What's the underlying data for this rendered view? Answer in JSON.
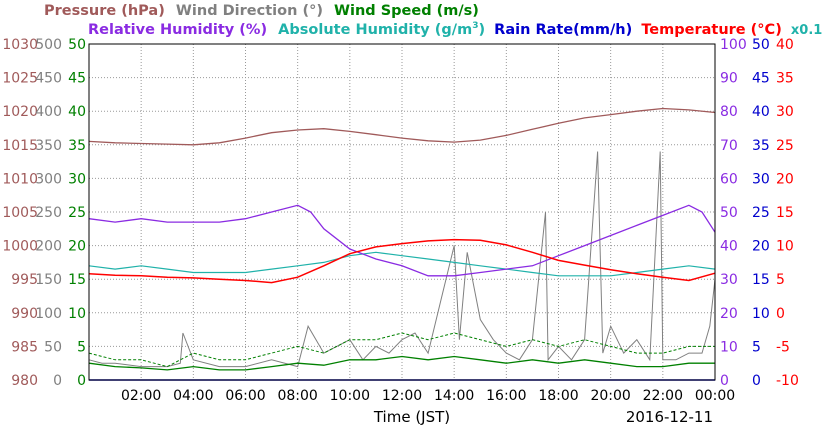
{
  "legend": {
    "pressure": "Pressure (hPa)",
    "wind_direction": "Wind Direction (°)",
    "wind_speed": "Wind Speed (m/s)",
    "relative_humidity": "Relative Humidity (%)",
    "absolute_humidity": "Absolute Humidity (g/m",
    "absolute_humidity_sup": "3",
    "absolute_humidity_close": ")",
    "rain_rate": "Rain Rate(mm/h)",
    "temperature": "Temperature (°C)",
    "scale_note": "x0.1"
  },
  "xlabel": "Time (JST)",
  "date": "2016-12-11",
  "colors": {
    "pressure": "#a05a5a",
    "wind_direction": "#808080",
    "wind_speed": "#008000",
    "relative_humidity": "#8a2be2",
    "absolute_humidity": "#20b2aa",
    "rain_rate": "#0000cd",
    "temperature": "#ff0000"
  },
  "chart_data": {
    "type": "line",
    "x_range_hours": [
      0,
      24
    ],
    "x_ticks": [
      "02:00",
      "04:00",
      "06:00",
      "08:00",
      "10:00",
      "12:00",
      "14:00",
      "16:00",
      "18:00",
      "20:00",
      "22:00",
      "00:00"
    ],
    "axes": {
      "pressure": [
        "980",
        "985",
        "990",
        "995",
        "1000",
        "1005",
        "1010",
        "1015",
        "1020",
        "1025",
        "1030"
      ],
      "wind_direction": [
        "0",
        "50",
        "100",
        "150",
        "200",
        "250",
        "300",
        "350",
        "400",
        "450",
        "500"
      ],
      "wind_speed": [
        "0",
        "5",
        "10",
        "15",
        "20",
        "25",
        "30",
        "35",
        "40",
        "45",
        "50"
      ],
      "relative_humidity": [
        "0",
        "10",
        "20",
        "30",
        "40",
        "50",
        "60",
        "70",
        "80",
        "90",
        "100"
      ],
      "rain_rate": [
        "0",
        "5",
        "10",
        "15",
        "20",
        "25",
        "30",
        "35",
        "40",
        "45",
        "50"
      ],
      "temperature": [
        "-10",
        "-5",
        "0",
        "5",
        "10",
        "15",
        "20",
        "25",
        "30",
        "35",
        "40"
      ]
    },
    "ylim": {
      "pressure": [
        980,
        1030
      ],
      "wind_direction": [
        0,
        500
      ],
      "wind_speed": [
        0,
        50
      ],
      "relative_humidity": [
        0,
        100
      ],
      "absolute_humidity_x0_1": [
        0,
        100
      ],
      "rain_rate": [
        0,
        50
      ],
      "temperature": [
        -10,
        40
      ]
    },
    "grid": true,
    "series": {
      "pressure": {
        "x": [
          0,
          1,
          2,
          3,
          4,
          5,
          6,
          7,
          8,
          9,
          10,
          11,
          12,
          13,
          14,
          15,
          16,
          17,
          18,
          19,
          20,
          21,
          22,
          23,
          24
        ],
        "y": [
          1015.5,
          1015.3,
          1015.2,
          1015.1,
          1015.0,
          1015.3,
          1016.0,
          1016.8,
          1017.2,
          1017.4,
          1017.0,
          1016.5,
          1016.0,
          1015.6,
          1015.4,
          1015.7,
          1016.4,
          1017.3,
          1018.2,
          1019.0,
          1019.5,
          1020.0,
          1020.4,
          1020.2,
          1019.8
        ]
      },
      "wind_direction": {
        "x": [
          0,
          0.5,
          1,
          2,
          3,
          3.5,
          3.6,
          4,
          5,
          6,
          7,
          8,
          8.4,
          9,
          10,
          10.5,
          11,
          11.5,
          12,
          12.5,
          13,
          13.5,
          14,
          14.2,
          14.5,
          15,
          15.5,
          16,
          16.5,
          17,
          17.5,
          17.6,
          18,
          18.5,
          19,
          19.5,
          19.7,
          20,
          20.5,
          21,
          21.5,
          21.9,
          22,
          22.5,
          23,
          23.5,
          23.8,
          24
        ],
        "y": [
          30,
          25,
          25,
          20,
          20,
          25,
          70,
          30,
          20,
          20,
          30,
          20,
          80,
          40,
          60,
          30,
          50,
          40,
          60,
          70,
          40,
          120,
          200,
          60,
          190,
          90,
          60,
          40,
          30,
          60,
          250,
          30,
          50,
          30,
          60,
          340,
          40,
          80,
          40,
          60,
          30,
          340,
          30,
          30,
          40,
          40,
          80,
          150
        ]
      },
      "wind_speed": {
        "x": [
          0,
          1,
          2,
          3,
          4,
          5,
          6,
          7,
          8,
          9,
          10,
          11,
          12,
          13,
          14,
          15,
          16,
          17,
          18,
          19,
          20,
          21,
          22,
          23,
          24
        ],
        "y": [
          2.5,
          2.0,
          1.8,
          1.5,
          2.0,
          1.5,
          1.5,
          2.0,
          2.5,
          2.2,
          3.0,
          3.0,
          3.5,
          3.0,
          3.5,
          3.0,
          2.5,
          3.0,
          2.5,
          3.0,
          2.5,
          2.0,
          2.0,
          2.5,
          2.5
        ]
      },
      "wind_gust": {
        "x": [
          0,
          1,
          2,
          3,
          4,
          5,
          6,
          7,
          8,
          9,
          10,
          11,
          12,
          13,
          14,
          15,
          16,
          17,
          18,
          19,
          20,
          21,
          22,
          23,
          24
        ],
        "y": [
          4,
          3,
          3,
          2,
          4,
          3,
          3,
          4,
          5,
          4,
          6,
          6,
          7,
          6,
          7,
          6,
          5,
          6,
          5,
          6,
          5,
          4,
          4,
          5,
          5
        ]
      },
      "relative_humidity": {
        "x": [
          0,
          1,
          2,
          3,
          4,
          5,
          6,
          7,
          8,
          8.5,
          9,
          10,
          11,
          12,
          13,
          14,
          15,
          16,
          17,
          18,
          19,
          20,
          21,
          22,
          23,
          23.5,
          24
        ],
        "y": [
          48,
          47,
          48,
          47,
          47,
          47,
          48,
          50,
          52,
          50,
          45,
          39,
          36,
          34,
          31,
          31,
          32,
          33,
          34,
          37,
          40,
          43,
          46,
          49,
          52,
          50,
          44
        ]
      },
      "absolute_humidity_x0_1": {
        "x": [
          0,
          1,
          2,
          3,
          4,
          5,
          6,
          7,
          8,
          9,
          10,
          11,
          12,
          13,
          14,
          15,
          16,
          17,
          18,
          19,
          20,
          21,
          22,
          23,
          24
        ],
        "y": [
          34,
          33,
          34,
          33,
          32,
          32,
          32,
          33,
          34,
          35,
          37,
          38,
          37,
          36,
          35,
          34,
          33,
          32,
          31,
          31,
          31,
          32,
          33,
          34,
          33
        ]
      },
      "rain_rate": {
        "x": [
          0,
          24
        ],
        "y": [
          0,
          0
        ]
      },
      "temperature": {
        "x": [
          0,
          1,
          2,
          3,
          4,
          5,
          6,
          7,
          8,
          9,
          10,
          11,
          12,
          13,
          14,
          15,
          16,
          17,
          18,
          19,
          20,
          21,
          22,
          23,
          24
        ],
        "y": [
          5.8,
          5.6,
          5.5,
          5.3,
          5.2,
          5.0,
          4.8,
          4.5,
          5.3,
          7.0,
          8.8,
          9.8,
          10.3,
          10.7,
          10.9,
          10.8,
          10.1,
          9.0,
          7.8,
          7.1,
          6.4,
          5.8,
          5.3,
          4.8,
          5.9
        ]
      }
    }
  }
}
